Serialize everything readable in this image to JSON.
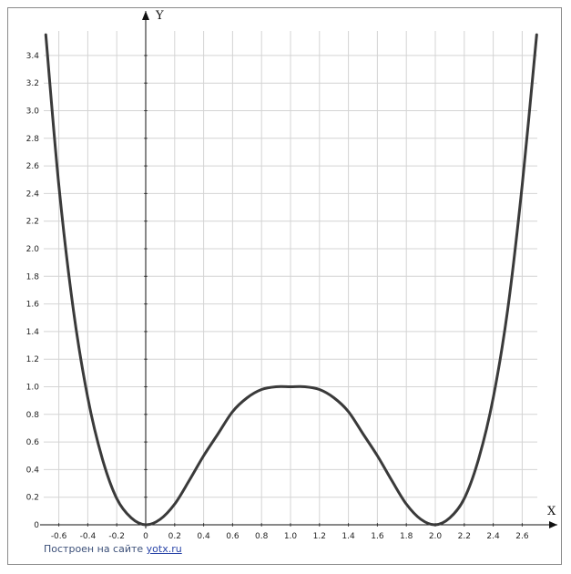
{
  "chart_data": {
    "type": "line",
    "title": "",
    "xlabel": "X",
    "ylabel": "Y",
    "xlim": [
      -0.7,
      2.75
    ],
    "ylim": [
      0,
      3.55
    ],
    "x_ticks": [
      "-0.6",
      "-0.4",
      "-0.2",
      "0",
      "0.2",
      "0.4",
      "0.6",
      "0.8",
      "1.0",
      "1.2",
      "1.4",
      "1.6",
      "1.8",
      "2.0",
      "2.2",
      "2.4",
      "2.6"
    ],
    "y_ticks": [
      "0",
      "0.2",
      "0.4",
      "0.6",
      "0.8",
      "1.0",
      "1.2",
      "1.4",
      "1.6",
      "1.8",
      "2.0",
      "2.2",
      "2.4",
      "2.6",
      "2.8",
      "3.0",
      "3.2",
      "3.4"
    ],
    "grid": true,
    "series": [
      {
        "x": [
          -0.69,
          -0.6,
          -0.5,
          -0.4,
          -0.3,
          -0.2,
          -0.1,
          0,
          0.1,
          0.2,
          0.3,
          0.4,
          0.5,
          0.6,
          0.7,
          0.8,
          0.9,
          1.0,
          1.1,
          1.2,
          1.3,
          1.4,
          1.5,
          1.6,
          1.7,
          1.8,
          1.9,
          2.0,
          2.1,
          2.2,
          2.3,
          2.4,
          2.5,
          2.6,
          2.7
        ],
        "values": [
          3.55,
          2.46,
          1.56,
          0.92,
          0.48,
          0.19,
          0.05,
          0,
          0.04,
          0.15,
          0.32,
          0.5,
          0.66,
          0.82,
          0.92,
          0.98,
          1.0,
          1.0,
          1.0,
          0.98,
          0.92,
          0.82,
          0.66,
          0.5,
          0.32,
          0.15,
          0.04,
          0,
          0.05,
          0.19,
          0.48,
          0.92,
          1.56,
          2.46,
          3.55
        ],
        "color": "#3a3a3a"
      }
    ]
  },
  "credit": {
    "text": "Построен на сайте",
    "link": "yotx.ru"
  }
}
